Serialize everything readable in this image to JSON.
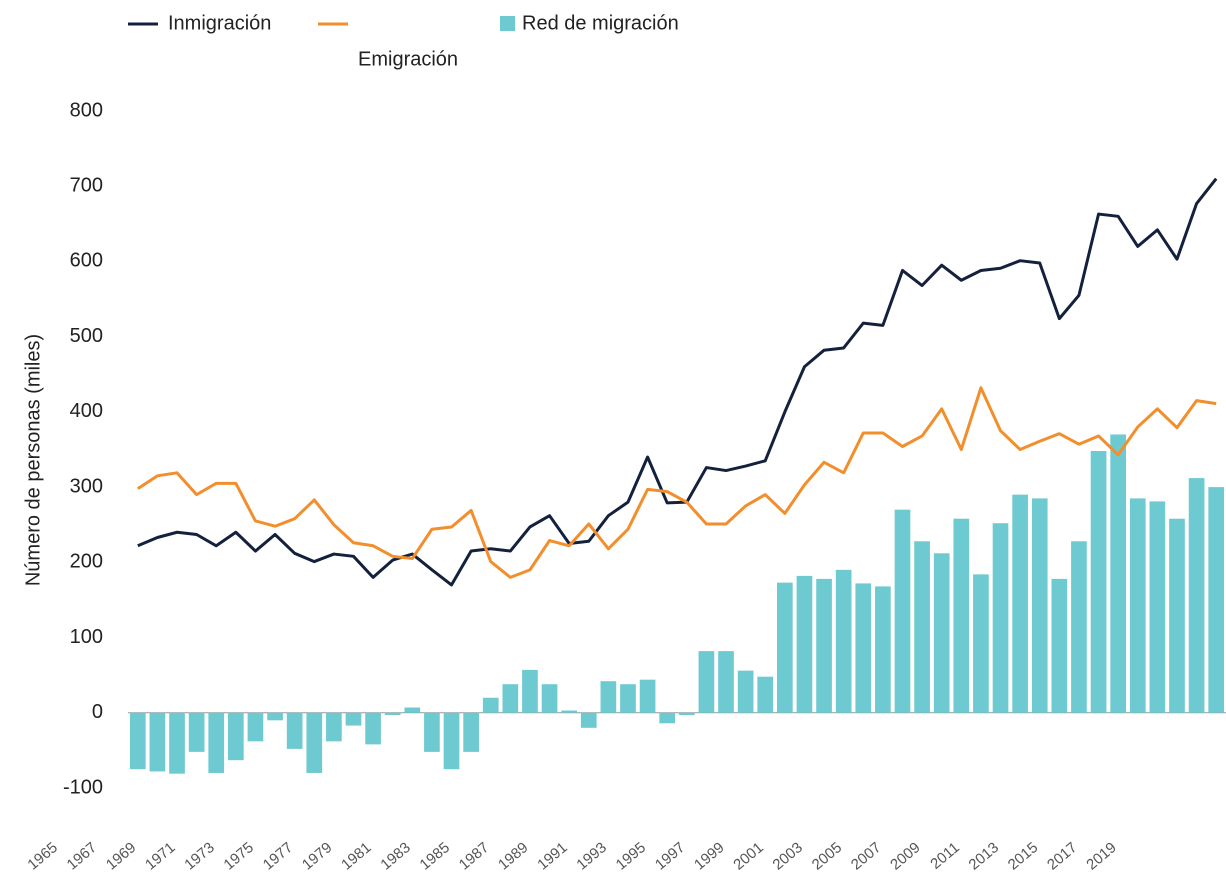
{
  "chart_data": {
    "type": "bar-line",
    "y_label": "Número de personas (miles)",
    "categories": [
      1965,
      null,
      1967,
      null,
      1969,
      null,
      1971,
      null,
      1973,
      null,
      1975,
      null,
      1977,
      null,
      1979,
      null,
      1981,
      null,
      1983,
      null,
      1985,
      null,
      1987,
      null,
      1989,
      null,
      1991,
      null,
      1993,
      null,
      1995,
      null,
      1997,
      null,
      1999,
      null,
      2001,
      null,
      2003,
      null,
      2005,
      null,
      2007,
      null,
      2009,
      null,
      2011,
      null,
      2013,
      null,
      2015,
      null,
      2017,
      null,
      2019,
      null
    ],
    "series": [
      {
        "name": "Inmigración",
        "kind": "line",
        "color": "#14213d",
        "values": [
          222,
          233,
          240,
          237,
          222,
          240,
          215,
          237,
          212,
          201,
          211,
          208,
          180,
          203,
          211,
          190,
          170,
          215,
          218,
          215,
          247,
          262,
          225,
          228,
          262,
          280,
          340,
          279,
          280,
          326,
          322,
          328,
          335,
          400,
          460,
          482,
          485,
          518,
          515,
          588,
          568,
          595,
          575,
          588,
          591,
          601,
          598,
          524,
          555,
          663,
          660,
          620,
          642,
          603,
          677,
          710
        ]
      },
      {
        "name": "Emigración",
        "kind": "line",
        "color": "#f28e2b",
        "values": [
          298,
          315,
          319,
          290,
          305,
          305,
          255,
          248,
          258,
          283,
          250,
          226,
          222,
          208,
          205,
          244,
          247,
          269,
          201,
          180,
          190,
          229,
          222,
          251,
          218,
          244,
          297,
          294,
          280,
          251,
          251,
          275,
          290,
          265,
          303,
          333,
          319,
          372,
          372,
          354,
          368,
          404,
          350,
          432,
          375,
          350,
          361,
          371,
          357,
          368,
          343,
          380,
          404,
          379,
          415,
          411
        ]
      },
      {
        "name": "Red de migración",
        "kind": "bar",
        "color": "#6ecad1",
        "values": [
          -75,
          -78,
          -81,
          -52,
          -80,
          -63,
          -38,
          -10,
          -48,
          -80,
          -38,
          -17,
          -42,
          -3,
          7,
          -52,
          -75,
          -52,
          20,
          38,
          57,
          38,
          3,
          -20,
          42,
          38,
          44,
          -14,
          -3,
          82,
          82,
          56,
          48,
          173,
          182,
          178,
          190,
          172,
          168,
          270,
          228,
          212,
          258,
          184,
          252,
          290,
          285,
          178,
          228,
          348,
          370,
          285,
          281,
          258,
          312,
          300
        ]
      }
    ],
    "ylim": [
      -100,
      800
    ],
    "yticks": [
      -100,
      0,
      100,
      200,
      300,
      400,
      500,
      600,
      700,
      800
    ]
  }
}
